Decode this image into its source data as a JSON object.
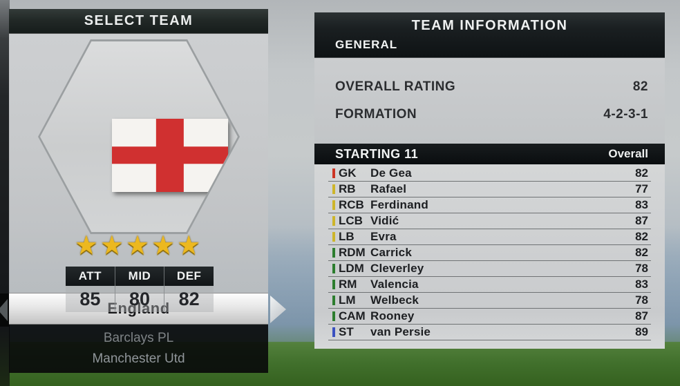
{
  "left_panel": {
    "title": "SELECT TEAM",
    "flag": "england-flag",
    "star_rating": 5,
    "stars_glyphs": "★★★★★",
    "stats": {
      "headers": [
        "ATT",
        "MID",
        "DEF"
      ],
      "values": [
        "85",
        "80",
        "82"
      ]
    },
    "selected_team": "England",
    "list_items": [
      {
        "label": "Barclays PL"
      },
      {
        "label": "Manchester Utd"
      }
    ],
    "nav": {
      "prev_icon": "left-arrow",
      "next_icon": "right-arrow"
    }
  },
  "right_panel": {
    "title": "TEAM INFORMATION",
    "section_label": "GENERAL",
    "general": [
      {
        "label": "OVERALL RATING",
        "value": "82"
      },
      {
        "label": "FORMATION",
        "value": "4-2-3-1"
      }
    ],
    "starting11": {
      "title": "STARTING 11",
      "column_header": "Overall",
      "position_colors": {
        "goalkeeper": "#cc3524",
        "defender": "#cdb52a",
        "midfielder": "#2c7d2e",
        "striker": "#3a50c0"
      },
      "players": [
        {
          "pos": "GK",
          "name": "De Gea",
          "rating": "82",
          "color": "#cc3524"
        },
        {
          "pos": "RB",
          "name": "Rafael",
          "rating": "77",
          "color": "#cdb52a"
        },
        {
          "pos": "RCB",
          "name": "Ferdinand",
          "rating": "83",
          "color": "#cdb52a"
        },
        {
          "pos": "LCB",
          "name": "Vidić",
          "rating": "87",
          "color": "#cdb52a"
        },
        {
          "pos": "LB",
          "name": "Evra",
          "rating": "82",
          "color": "#cdb52a"
        },
        {
          "pos": "RDM",
          "name": "Carrick",
          "rating": "82",
          "color": "#2c7d2e"
        },
        {
          "pos": "LDM",
          "name": "Cleverley",
          "rating": "78",
          "color": "#2c7d2e"
        },
        {
          "pos": "RM",
          "name": "Valencia",
          "rating": "83",
          "color": "#2c7d2e"
        },
        {
          "pos": "LM",
          "name": "Welbeck",
          "rating": "78",
          "color": "#2c7d2e"
        },
        {
          "pos": "CAM",
          "name": "Rooney",
          "rating": "87",
          "color": "#2c7d2e"
        },
        {
          "pos": "ST",
          "name": "van Persie",
          "rating": "89",
          "color": "#3a50c0"
        }
      ]
    }
  }
}
